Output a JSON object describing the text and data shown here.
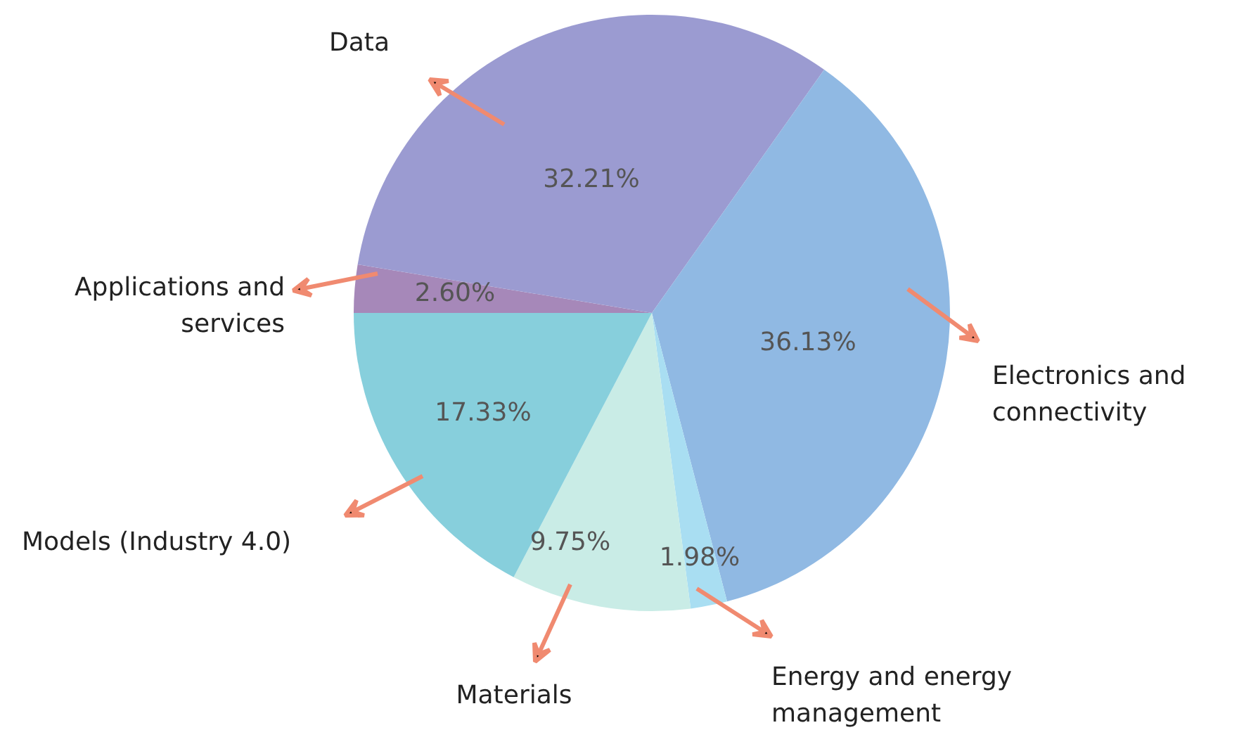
{
  "chart_data": {
    "type": "pie",
    "categories": [
      "Applications and\nservices",
      "Data",
      "Electronics and\nconnectivity",
      "Energy and energy\nmanagement",
      "Materials",
      "Models (Industry 4.0)"
    ],
    "values": [
      2.6,
      32.21,
      36.13,
      1.98,
      9.75,
      17.33
    ],
    "colors": [
      "#a688b9",
      "#9b9bd1",
      "#90b9e3",
      "#a9def2",
      "#c9ece6",
      "#87cfdc"
    ],
    "value_labels": [
      "2.60%",
      "32.21%",
      "36.13%",
      "1.98%",
      "9.75%",
      "17.33%"
    ]
  }
}
